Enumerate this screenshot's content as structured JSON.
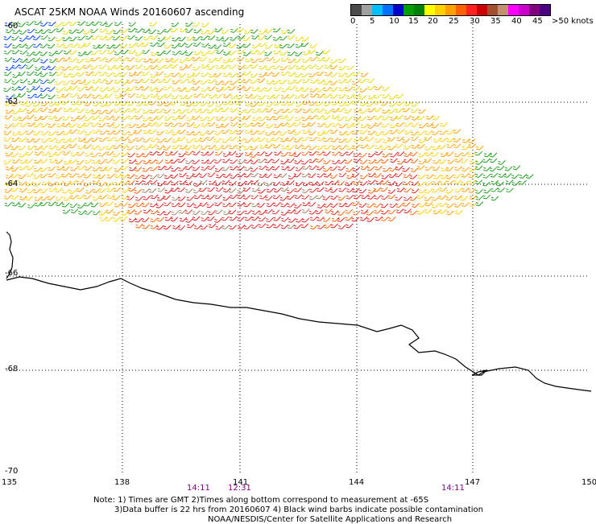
{
  "title": "ASCAT 25KM NOAA Winds 20160607 ascending",
  "legend": {
    "colors": [
      "#4a4a4a",
      "#a0a0a0",
      "#00bfff",
      "#0070ff",
      "#0000cc",
      "#00a000",
      "#008000",
      "#ffff00",
      "#ffd000",
      "#ffa000",
      "#ff6000",
      "#ff2020",
      "#cc0000",
      "#a05030",
      "#c09070",
      "#ff00ff",
      "#cc00cc",
      "#800080",
      "#4b0082"
    ],
    "labels": [
      "0",
      "5",
      "10",
      "15",
      "20",
      "25",
      "30",
      "35",
      "40",
      "45",
      ">50 knots"
    ]
  },
  "axes": {
    "lon_labels": [
      "135",
      "138",
      "141",
      "144",
      "147",
      "150"
    ],
    "lat_labels": [
      "-60",
      "-62",
      "-64",
      "-66",
      "-68",
      "-70"
    ]
  },
  "times": [
    "14:11",
    "12:31",
    "14:11"
  ],
  "notes": [
    "Note: 1) Times are GMT 2)Times along bottom correspond to measurement at -65S",
    "3)Data buffer is 22 hrs from 20160607 4) Black wind barbs indicate possible contamination",
    "NOAA/NESDIS/Center for Satellite Applications and Research"
  ]
}
